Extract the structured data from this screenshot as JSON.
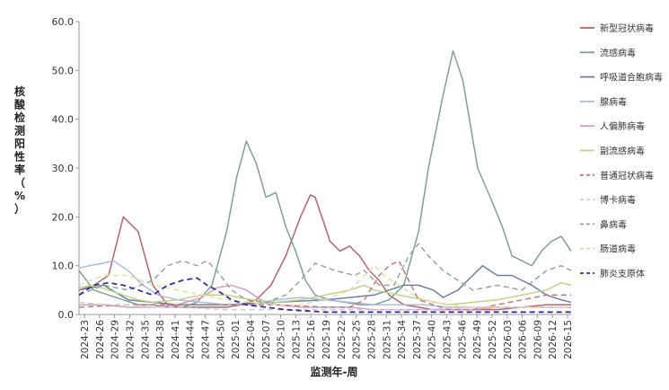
{
  "chart_data": {
    "type": "line",
    "ylabel": "核酸检测阳性率（%）",
    "xlabel": "监测年-周",
    "ylim": [
      0,
      60
    ],
    "yticks": [
      "0.0",
      "10.0",
      "20.0",
      "30.0",
      "40.0",
      "50.0",
      "60.0"
    ],
    "ytick_values": [
      0,
      10,
      20,
      30,
      40,
      50,
      60
    ],
    "grid": false,
    "legend_position": "right",
    "x_labels": [
      "2024-23",
      "2024-26",
      "2024-29",
      "2024-32",
      "2024-35",
      "2024-38",
      "2024-41",
      "2024-44",
      "2024-47",
      "2024-50",
      "2025-01",
      "2025-04",
      "2025-07",
      "2025-10",
      "2025-13",
      "2025-16",
      "2025-19",
      "2025-22",
      "2025-25",
      "2025-28",
      "2025-31",
      "2025-34",
      "2025-37",
      "2025-40",
      "2025-43",
      "2025-46",
      "2025-49",
      "2025-52",
      "2026-03",
      "2026-06",
      "2026-09",
      "2026-12",
      "2026-15"
    ],
    "series": [
      {
        "name": "新型冠状病毒",
        "color": "#b5646a",
        "dash": false,
        "points": [
          [
            0,
            5
          ],
          [
            3,
            6
          ],
          [
            6,
            8
          ],
          [
            9,
            20
          ],
          [
            12,
            17
          ],
          [
            15,
            6
          ],
          [
            18,
            2
          ],
          [
            21,
            1.5
          ],
          [
            24,
            1.5
          ],
          [
            27,
            1.5
          ],
          [
            30,
            1.5
          ],
          [
            33,
            2
          ],
          [
            36,
            3
          ],
          [
            39,
            6
          ],
          [
            42,
            12
          ],
          [
            45,
            20
          ],
          [
            47,
            24.5
          ],
          [
            48,
            24
          ],
          [
            51,
            15
          ],
          [
            53,
            13
          ],
          [
            55,
            14
          ],
          [
            57,
            12
          ],
          [
            59,
            9
          ],
          [
            61,
            7
          ],
          [
            63,
            4
          ],
          [
            66,
            2
          ],
          [
            69,
            1.5
          ],
          [
            72,
            1
          ],
          [
            75,
            1
          ],
          [
            80,
            1
          ],
          [
            85,
            1
          ],
          [
            90,
            1.5
          ],
          [
            95,
            2
          ],
          [
            100,
            2
          ]
        ]
      },
      {
        "name": "流感病毒",
        "color": "#7fa28a",
        "dash": false,
        "points": [
          [
            0,
            9
          ],
          [
            3,
            5
          ],
          [
            6,
            4
          ],
          [
            9,
            3
          ],
          [
            12,
            2
          ],
          [
            15,
            2
          ],
          [
            18,
            1.5
          ],
          [
            21,
            1.5
          ],
          [
            24,
            2.5
          ],
          [
            27,
            6
          ],
          [
            30,
            17
          ],
          [
            32,
            28
          ],
          [
            34,
            35.5
          ],
          [
            36,
            31
          ],
          [
            38,
            24
          ],
          [
            40,
            25
          ],
          [
            42,
            18
          ],
          [
            44,
            13
          ],
          [
            46,
            7
          ],
          [
            48,
            4
          ],
          [
            51,
            3
          ],
          [
            54,
            2.5
          ],
          [
            57,
            2
          ],
          [
            60,
            2
          ],
          [
            63,
            3
          ],
          [
            66,
            6
          ],
          [
            69,
            17
          ],
          [
            71,
            30
          ],
          [
            74,
            45
          ],
          [
            76,
            54
          ],
          [
            78,
            48
          ],
          [
            81,
            30
          ],
          [
            84,
            23
          ],
          [
            86,
            18
          ],
          [
            88,
            12
          ],
          [
            90,
            11
          ],
          [
            92,
            10
          ],
          [
            94,
            13
          ],
          [
            96,
            15
          ],
          [
            98,
            16
          ],
          [
            100,
            13
          ]
        ]
      },
      {
        "name": "呼吸道合胞病毒",
        "color": "#6a7fa6",
        "dash": false,
        "points": [
          [
            0,
            5
          ],
          [
            5,
            6
          ],
          [
            10,
            3
          ],
          [
            20,
            2
          ],
          [
            30,
            2
          ],
          [
            40,
            2.5
          ],
          [
            50,
            3
          ],
          [
            55,
            3.5
          ],
          [
            60,
            4
          ],
          [
            63,
            5
          ],
          [
            66,
            6
          ],
          [
            69,
            6
          ],
          [
            72,
            5
          ],
          [
            74,
            3.5
          ],
          [
            77,
            5
          ],
          [
            80,
            8
          ],
          [
            82,
            10
          ],
          [
            85,
            8
          ],
          [
            88,
            8
          ],
          [
            90,
            7
          ],
          [
            92,
            6
          ],
          [
            95,
            4
          ],
          [
            98,
            3
          ],
          [
            100,
            2.5
          ]
        ]
      },
      {
        "name": "腺病毒",
        "color": "#a9bde0",
        "dash": false,
        "points": [
          [
            0,
            9.5
          ],
          [
            2,
            10
          ],
          [
            5,
            10.5
          ],
          [
            7,
            11
          ],
          [
            10,
            9
          ],
          [
            13,
            6
          ],
          [
            16,
            4
          ],
          [
            20,
            3
          ],
          [
            25,
            2.5
          ],
          [
            30,
            2
          ],
          [
            35,
            2
          ],
          [
            40,
            3
          ],
          [
            45,
            3.5
          ],
          [
            50,
            3
          ],
          [
            55,
            2.5
          ],
          [
            60,
            2
          ],
          [
            65,
            2
          ],
          [
            70,
            2
          ],
          [
            75,
            1.5
          ],
          [
            80,
            1.5
          ],
          [
            85,
            1.5
          ],
          [
            90,
            1.5
          ],
          [
            95,
            1.5
          ],
          [
            100,
            1.5
          ]
        ]
      },
      {
        "name": "人偏肺病毒",
        "color": "#d99bc8",
        "dash": false,
        "points": [
          [
            0,
            2
          ],
          [
            5,
            2
          ],
          [
            10,
            1.5
          ],
          [
            15,
            1.5
          ],
          [
            20,
            2
          ],
          [
            25,
            3.5
          ],
          [
            28,
            5.5
          ],
          [
            31,
            6
          ],
          [
            34,
            5
          ],
          [
            37,
            3
          ],
          [
            40,
            2
          ],
          [
            45,
            1.5
          ],
          [
            50,
            1.5
          ],
          [
            55,
            1.5
          ],
          [
            60,
            1
          ],
          [
            65,
            1
          ],
          [
            70,
            1
          ],
          [
            75,
            1
          ],
          [
            80,
            1
          ],
          [
            85,
            1.5
          ],
          [
            90,
            1.5
          ],
          [
            95,
            1.5
          ],
          [
            100,
            1.5
          ]
        ]
      },
      {
        "name": "副流感病毒",
        "color": "#c3cf85",
        "dash": false,
        "points": [
          [
            0,
            5.5
          ],
          [
            3,
            6
          ],
          [
            6,
            5
          ],
          [
            9,
            4
          ],
          [
            12,
            3
          ],
          [
            15,
            2.5
          ],
          [
            20,
            3
          ],
          [
            25,
            4
          ],
          [
            30,
            4
          ],
          [
            35,
            3
          ],
          [
            40,
            2.5
          ],
          [
            45,
            3
          ],
          [
            50,
            4
          ],
          [
            55,
            5
          ],
          [
            58,
            6
          ],
          [
            60,
            5
          ],
          [
            65,
            4
          ],
          [
            70,
            3
          ],
          [
            75,
            2
          ],
          [
            80,
            2.5
          ],
          [
            85,
            3
          ],
          [
            90,
            4
          ],
          [
            95,
            5
          ],
          [
            98,
            6.5
          ],
          [
            100,
            6
          ]
        ]
      },
      {
        "name": "普通冠状病毒",
        "color": "#c07a78",
        "dash": true,
        "points": [
          [
            0,
            1.5
          ],
          [
            10,
            2
          ],
          [
            20,
            2
          ],
          [
            30,
            2
          ],
          [
            40,
            2
          ],
          [
            50,
            1.5
          ],
          [
            55,
            1.5
          ],
          [
            58,
            3
          ],
          [
            61,
            8
          ],
          [
            63,
            10
          ],
          [
            65,
            11
          ],
          [
            67,
            7
          ],
          [
            69,
            3
          ],
          [
            72,
            2
          ],
          [
            75,
            1
          ],
          [
            80,
            1
          ],
          [
            85,
            2
          ],
          [
            90,
            3
          ],
          [
            95,
            4
          ],
          [
            100,
            4
          ]
        ]
      },
      {
        "name": "博卡病毒",
        "color": "#c9ced6",
        "dash": true,
        "points": [
          [
            0,
            2.5
          ],
          [
            5,
            2
          ],
          [
            10,
            2
          ],
          [
            15,
            1.5
          ],
          [
            20,
            1.5
          ],
          [
            30,
            1
          ],
          [
            40,
            1
          ],
          [
            50,
            1
          ],
          [
            60,
            1
          ],
          [
            70,
            1
          ],
          [
            80,
            1.5
          ],
          [
            90,
            1.5
          ],
          [
            100,
            1.5
          ]
        ]
      },
      {
        "name": "鼻病毒",
        "color": "#8faa94",
        "dash": true,
        "points": [
          [
            0,
            4
          ],
          [
            5,
            6
          ],
          [
            10,
            5
          ],
          [
            15,
            7
          ],
          [
            18,
            10
          ],
          [
            21,
            11
          ],
          [
            24,
            10
          ],
          [
            26,
            11
          ],
          [
            28,
            9
          ],
          [
            31,
            5
          ],
          [
            34,
            3
          ],
          [
            38,
            2.5
          ],
          [
            42,
            4
          ],
          [
            45,
            7
          ],
          [
            48,
            10.5
          ],
          [
            52,
            9
          ],
          [
            56,
            8
          ],
          [
            58,
            9
          ],
          [
            61,
            6
          ],
          [
            64,
            6
          ],
          [
            67,
            12
          ],
          [
            69,
            14.5
          ],
          [
            71,
            12
          ],
          [
            74,
            9
          ],
          [
            77,
            7
          ],
          [
            80,
            5
          ],
          [
            85,
            6
          ],
          [
            90,
            5
          ],
          [
            95,
            9
          ],
          [
            98,
            10
          ],
          [
            100,
            9
          ]
        ]
      },
      {
        "name": "肠道病毒",
        "color": "#dfe0a8",
        "dash": true,
        "points": [
          [
            0,
            6
          ],
          [
            5,
            8
          ],
          [
            10,
            8
          ],
          [
            15,
            6
          ],
          [
            20,
            5
          ],
          [
            25,
            4
          ],
          [
            30,
            3
          ],
          [
            35,
            2.5
          ],
          [
            40,
            2
          ],
          [
            45,
            2
          ],
          [
            50,
            3
          ],
          [
            55,
            5
          ],
          [
            60,
            10
          ],
          [
            62,
            8
          ],
          [
            65,
            6
          ],
          [
            68,
            4
          ],
          [
            70,
            3
          ],
          [
            75,
            2
          ],
          [
            80,
            1.5
          ],
          [
            85,
            1.5
          ],
          [
            90,
            1.5
          ],
          [
            95,
            1.5
          ],
          [
            100,
            1.5
          ]
        ]
      },
      {
        "name": "肺炎支原体",
        "color": "#3b2fa0",
        "dash": true,
        "points": [
          [
            0,
            4
          ],
          [
            3,
            6
          ],
          [
            6,
            6.5
          ],
          [
            9,
            6
          ],
          [
            12,
            5
          ],
          [
            15,
            4
          ],
          [
            18,
            6
          ],
          [
            21,
            7
          ],
          [
            24,
            7.5
          ],
          [
            26,
            6
          ],
          [
            28,
            5
          ],
          [
            31,
            3
          ],
          [
            34,
            2
          ],
          [
            38,
            1.5
          ],
          [
            42,
            1
          ],
          [
            50,
            0.5
          ],
          [
            60,
            0.5
          ],
          [
            70,
            0.5
          ],
          [
            80,
            0.5
          ],
          [
            90,
            0.5
          ],
          [
            100,
            0.5
          ]
        ]
      }
    ]
  }
}
